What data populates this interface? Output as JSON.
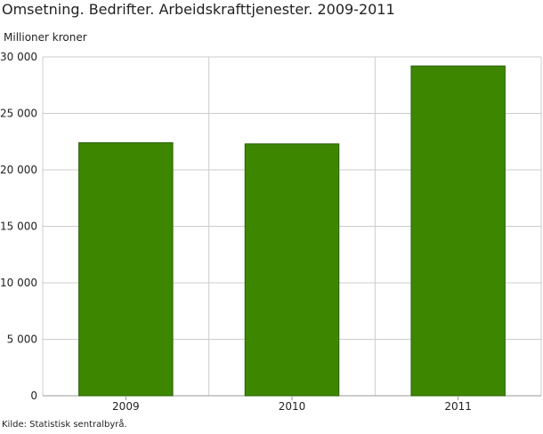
{
  "chart_data": {
    "type": "bar",
    "title": "Omsetning. Bedrifter. Arbeidskrafttjenester. 2009-2011",
    "ylabel": "Millioner kroner",
    "xlabel": "",
    "categories": [
      "2009",
      "2010",
      "2011"
    ],
    "values": [
      22400,
      22300,
      29200
    ],
    "ylim": [
      0,
      30000
    ],
    "yticks": [
      0,
      5000,
      10000,
      15000,
      20000,
      25000,
      30000
    ],
    "ytick_labels": [
      "0",
      "5 000",
      "10 000",
      "15 000",
      "20 000",
      "25 000",
      "30 000"
    ],
    "grid": true,
    "legend": "none",
    "bar_color": "#3d8700",
    "bar_edge_color": "#2a5f00",
    "grid_color": "#cccccc"
  },
  "source": "Kilde: Statistisk sentralbyrå."
}
